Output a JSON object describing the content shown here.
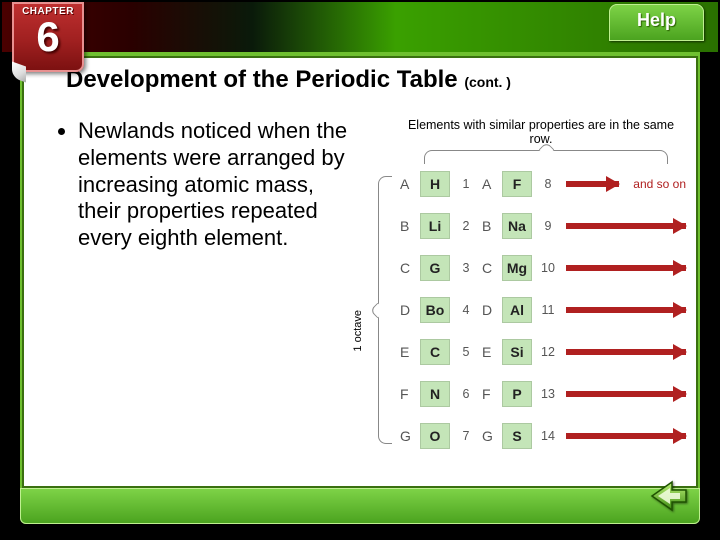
{
  "chapter": {
    "label": "CHAPTER",
    "number": "6"
  },
  "help": {
    "label": "Help"
  },
  "slide": {
    "title": "Development of the Periodic Table",
    "cont": "(cont. )",
    "bullet": "Newlands noticed when the elements were arranged by increasing atomic mass, their properties repeated every eighth element."
  },
  "diagram": {
    "caption": "Elements with similar properties are in the same row.",
    "octave_label": "1 octave",
    "and_so_on": "and so on",
    "element_bg": "#c4e5b8",
    "arrow_color": "#b02020",
    "rows": [
      {
        "label": "A",
        "e1": "H",
        "n1": "1",
        "e2": "F",
        "n2": "8",
        "and_so_on": true
      },
      {
        "label": "B",
        "e1": "Li",
        "n1": "2",
        "e2": "Na",
        "n2": "9",
        "and_so_on": false
      },
      {
        "label": "C",
        "e1": "G",
        "n1": "3",
        "e2": "Mg",
        "n2": "10",
        "and_so_on": false
      },
      {
        "label": "D",
        "e1": "Bo",
        "n1": "4",
        "e2": "Al",
        "n2": "11",
        "and_so_on": false
      },
      {
        "label": "E",
        "e1": "C",
        "n1": "5",
        "e2": "Si",
        "n2": "12",
        "and_so_on": false
      },
      {
        "label": "F",
        "e1": "N",
        "n1": "6",
        "e2": "P",
        "n2": "13",
        "and_so_on": false
      },
      {
        "label": "G",
        "e1": "O",
        "n1": "7",
        "e2": "S",
        "n2": "14",
        "and_so_on": false
      }
    ]
  },
  "colors": {
    "frame_green": "#6fc030",
    "footer_grad_top": "#7fd448",
    "footer_grad_bot": "#4aa21e",
    "badge_red": "#a02020"
  }
}
